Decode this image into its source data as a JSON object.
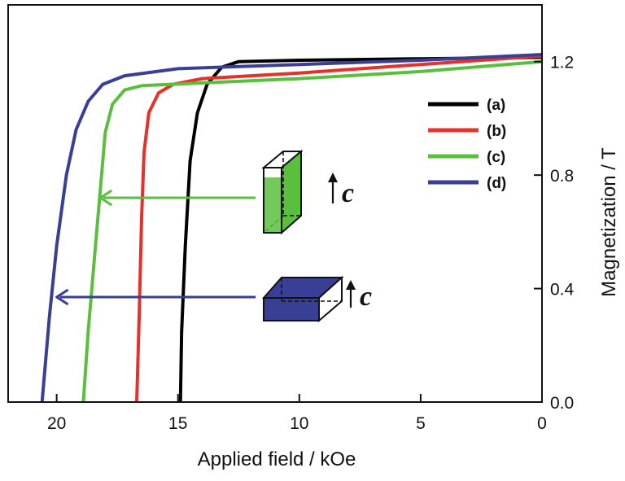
{
  "chart_data": {
    "type": "line",
    "title": "",
    "xlabel": "Applied field / kOe",
    "ylabel": "Magnetization / T",
    "xlim": [
      22,
      0
    ],
    "ylim": [
      0,
      1.4
    ],
    "x_reversed": true,
    "y_axis_side": "right",
    "x_ticks": [
      20,
      15,
      10,
      5,
      0
    ],
    "x_tick_labels": [
      "20",
      "15",
      "10",
      "5",
      "0"
    ],
    "y_ticks": [
      0.0,
      0.4,
      0.8,
      1.2
    ],
    "y_tick_labels": [
      "0.0",
      "0.4",
      "0.8",
      "1.2"
    ],
    "grid": false,
    "legend_placement": "right-center",
    "series": [
      {
        "name": "(a)",
        "color": "#000000",
        "points": [
          [
            14.9,
            0.0
          ],
          [
            14.85,
            0.25
          ],
          [
            14.7,
            0.55
          ],
          [
            14.5,
            0.85
          ],
          [
            14.2,
            1.02
          ],
          [
            13.8,
            1.12
          ],
          [
            13.2,
            1.18
          ],
          [
            12.5,
            1.2
          ],
          [
            10,
            1.205
          ],
          [
            5,
            1.21
          ],
          [
            0,
            1.215
          ]
        ]
      },
      {
        "name": "(b)",
        "color": "#e8302a",
        "points": [
          [
            16.7,
            0.0
          ],
          [
            16.6,
            0.3
          ],
          [
            16.5,
            0.65
          ],
          [
            16.4,
            0.88
          ],
          [
            16.2,
            1.02
          ],
          [
            15.8,
            1.09
          ],
          [
            15.2,
            1.12
          ],
          [
            14,
            1.14
          ],
          [
            10,
            1.16
          ],
          [
            5,
            1.19
          ],
          [
            0,
            1.22
          ]
        ]
      },
      {
        "name": "(c)",
        "color": "#5abf3c",
        "points": [
          [
            18.9,
            0.0
          ],
          [
            18.7,
            0.25
          ],
          [
            18.4,
            0.55
          ],
          [
            18.2,
            0.75
          ],
          [
            18.0,
            0.95
          ],
          [
            17.7,
            1.05
          ],
          [
            17.2,
            1.1
          ],
          [
            16.5,
            1.115
          ],
          [
            14,
            1.125
          ],
          [
            10,
            1.14
          ],
          [
            5,
            1.165
          ],
          [
            0,
            1.2
          ]
        ]
      },
      {
        "name": "(d)",
        "color": "#3a3f96",
        "points": [
          [
            20.6,
            0.0
          ],
          [
            20.3,
            0.3
          ],
          [
            20.0,
            0.55
          ],
          [
            19.6,
            0.8
          ],
          [
            19.2,
            0.96
          ],
          [
            18.7,
            1.06
          ],
          [
            18.1,
            1.12
          ],
          [
            17.2,
            1.15
          ],
          [
            15,
            1.175
          ],
          [
            10,
            1.19
          ],
          [
            5,
            1.205
          ],
          [
            0,
            1.225
          ]
        ]
      }
    ],
    "annotations": [
      {
        "kind": "arrow",
        "color": "#5abf3c",
        "from": [
          11.8,
          0.72
        ],
        "to": [
          18.2,
          0.72
        ]
      },
      {
        "kind": "arrow",
        "color": "#3a3f96",
        "from": [
          11.8,
          0.37
        ],
        "to": [
          20.0,
          0.37
        ]
      },
      {
        "kind": "crystal-tall",
        "fill": "#5abf3c",
        "text": "c"
      },
      {
        "kind": "crystal-flat",
        "fill": "#3a3f96",
        "text": "c"
      }
    ]
  }
}
